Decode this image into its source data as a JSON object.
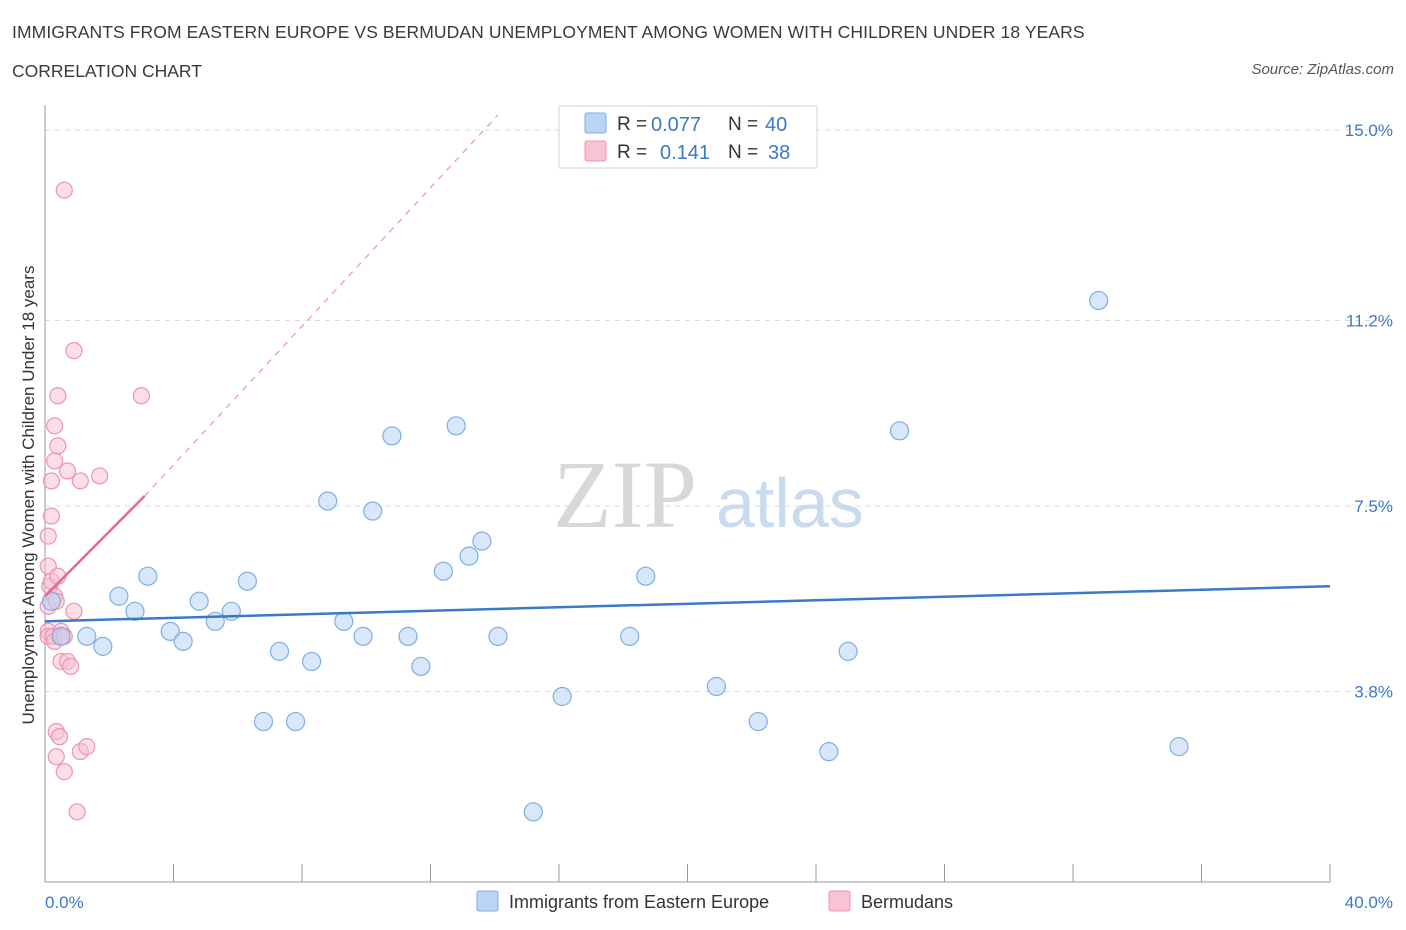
{
  "header": {
    "title": "IMMIGRANTS FROM EASTERN EUROPE VS BERMUDAN UNEMPLOYMENT AMONG WOMEN WITH CHILDREN UNDER 18 YEARS",
    "subtitle": "CORRELATION CHART",
    "source": "Source: ZipAtlas.com"
  },
  "watermark": {
    "zip": "ZIP",
    "atlas": "atlas"
  },
  "colors": {
    "blue": "#3a78c9",
    "blue_fill": "#b9d4f5",
    "blue_stroke": "#7eaee3",
    "pink": "#e8698f",
    "pink_fill": "#f8c3d3",
    "pink_stroke": "#ee93b0",
    "grid": "#d9d9d9"
  },
  "legend": {
    "rows": [
      {
        "series": "blue",
        "r_label": "R =",
        "r_value": "0.077",
        "n_label": "N =",
        "n_value": "40"
      },
      {
        "series": "pink",
        "r_label": "R =",
        "r_value": "0.141",
        "n_label": "N =",
        "n_value": "38"
      }
    ]
  },
  "chart_data": {
    "type": "scatter",
    "title": "IMMIGRANTS FROM EASTERN EUROPE VS BERMUDAN UNEMPLOYMENT AMONG WOMEN WITH CHILDREN UNDER 18 YEARS",
    "xlabel": "",
    "ylabel": "Unemployment Among Women with Children Under 18 years",
    "xlim": [
      0,
      40
    ],
    "ylim": [
      0,
      15.3
    ],
    "x_tick_labels": [
      {
        "value": 0,
        "label": "0.0%"
      },
      {
        "value": 40,
        "label": "40.0%"
      }
    ],
    "y_tick_labels": [
      {
        "value": 3.8,
        "label": "3.8%"
      },
      {
        "value": 7.5,
        "label": "7.5%"
      },
      {
        "value": 11.2,
        "label": "11.2%"
      },
      {
        "value": 15.0,
        "label": "15.0%"
      }
    ],
    "x_minor_ticks": [
      0,
      4,
      8,
      12,
      16,
      20,
      24,
      28,
      32,
      36,
      40
    ],
    "grid": true,
    "series": [
      {
        "name": "Immigrants from Eastern Europe",
        "color_key": "blue",
        "R": 0.077,
        "N": 40,
        "trend": {
          "x0": 0,
          "y0": 5.2,
          "x1": 40,
          "y1": 5.9,
          "dashed_extension": false
        },
        "points": [
          [
            0.2,
            5.6
          ],
          [
            0.5,
            4.9
          ],
          [
            1.3,
            4.9
          ],
          [
            1.8,
            4.7
          ],
          [
            2.3,
            5.7
          ],
          [
            2.8,
            5.4
          ],
          [
            3.2,
            6.1
          ],
          [
            3.9,
            5.0
          ],
          [
            4.3,
            4.8
          ],
          [
            4.8,
            5.6
          ],
          [
            5.3,
            5.2
          ],
          [
            5.8,
            5.4
          ],
          [
            6.3,
            6.0
          ],
          [
            6.8,
            3.2
          ],
          [
            7.3,
            4.6
          ],
          [
            7.8,
            3.2
          ],
          [
            8.3,
            4.4
          ],
          [
            8.8,
            7.6
          ],
          [
            9.3,
            5.2
          ],
          [
            9.9,
            4.9
          ],
          [
            10.2,
            7.4
          ],
          [
            10.8,
            8.9
          ],
          [
            11.3,
            4.9
          ],
          [
            11.7,
            4.3
          ],
          [
            12.4,
            6.2
          ],
          [
            12.8,
            9.1
          ],
          [
            13.2,
            6.5
          ],
          [
            13.6,
            6.8
          ],
          [
            14.1,
            4.9
          ],
          [
            15.2,
            1.4
          ],
          [
            16.1,
            3.7
          ],
          [
            18.2,
            4.9
          ],
          [
            18.7,
            6.1
          ],
          [
            20.9,
            3.9
          ],
          [
            22.2,
            3.2
          ],
          [
            24.4,
            2.6
          ],
          [
            25.0,
            4.6
          ],
          [
            26.6,
            9.0
          ],
          [
            32.8,
            11.6
          ],
          [
            35.3,
            2.7
          ]
        ]
      },
      {
        "name": "Bermudans",
        "color_key": "pink",
        "R": 0.141,
        "N": 38,
        "trend": {
          "x0": 0,
          "y0": 5.7,
          "x1": 3.1,
          "y1": 7.7,
          "extension_to": {
            "x": 14.1,
            "y": 15.3
          },
          "dashed_extension": true
        },
        "points": [
          [
            0.1,
            5.0
          ],
          [
            0.1,
            5.5
          ],
          [
            0.1,
            4.9
          ],
          [
            0.1,
            6.3
          ],
          [
            0.1,
            6.9
          ],
          [
            0.15,
            5.9
          ],
          [
            0.2,
            7.3
          ],
          [
            0.2,
            8.0
          ],
          [
            0.2,
            6.0
          ],
          [
            0.25,
            4.9
          ],
          [
            0.3,
            5.7
          ],
          [
            0.3,
            9.1
          ],
          [
            0.3,
            8.4
          ],
          [
            0.3,
            4.8
          ],
          [
            0.35,
            5.6
          ],
          [
            0.35,
            3.0
          ],
          [
            0.35,
            2.5
          ],
          [
            0.4,
            8.7
          ],
          [
            0.4,
            9.7
          ],
          [
            0.4,
            6.1
          ],
          [
            0.45,
            2.9
          ],
          [
            0.5,
            5.0
          ],
          [
            0.5,
            4.9
          ],
          [
            0.5,
            4.4
          ],
          [
            0.6,
            2.2
          ],
          [
            0.6,
            4.9
          ],
          [
            0.7,
            4.4
          ],
          [
            0.7,
            8.2
          ],
          [
            0.6,
            13.8
          ],
          [
            0.8,
            4.3
          ],
          [
            0.9,
            5.4
          ],
          [
            0.9,
            10.6
          ],
          [
            1.0,
            1.4
          ],
          [
            1.1,
            8.0
          ],
          [
            1.1,
            2.6
          ],
          [
            1.3,
            2.7
          ],
          [
            1.7,
            8.1
          ],
          [
            3.0,
            9.7
          ]
        ]
      }
    ]
  },
  "bottom_legend": [
    {
      "series": "blue",
      "label": "Immigrants from Eastern Europe"
    },
    {
      "series": "pink",
      "label": "Bermudans"
    }
  ]
}
